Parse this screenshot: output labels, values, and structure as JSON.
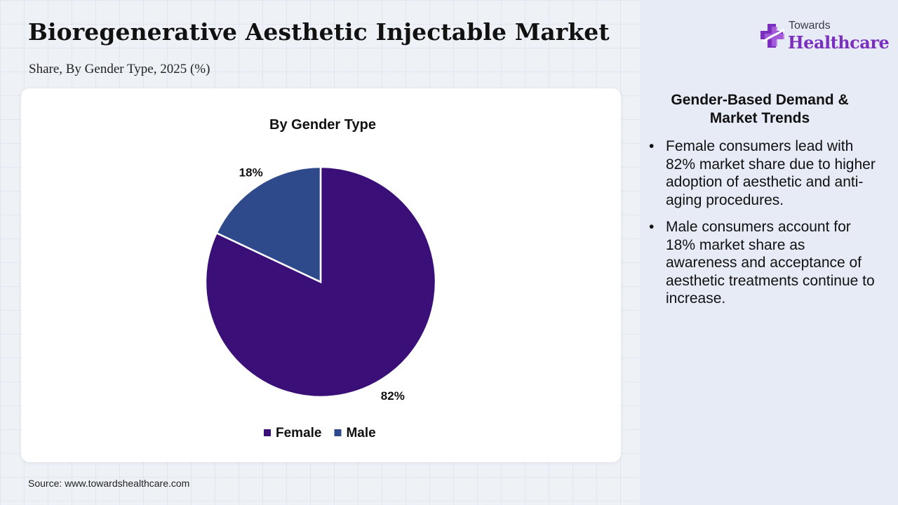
{
  "header": {
    "title": "Bioregenerative Aesthetic Injectable Market",
    "subtitle": "Share, By Gender Type, 2025 (%)"
  },
  "logo": {
    "small_text": "Towards",
    "big_text": "Healthcare",
    "icon": "medical-cross-icon",
    "colors": {
      "primary": "#7b2fbf",
      "secondary": "#b06ae0"
    }
  },
  "chart_data": {
    "type": "pie",
    "title": "By Gender Type",
    "categories": [
      "Female",
      "Male"
    ],
    "values": [
      82,
      18
    ],
    "labels": [
      "82%",
      "18%"
    ],
    "colors": [
      "#3b0f78",
      "#2e4a8a"
    ],
    "legend_position": "bottom",
    "start_angle": "12 o'clock",
    "direction": "clockwise"
  },
  "panel": {
    "heading": "Gender-Based Demand & Market Trends",
    "bullet_symbol": "•",
    "bullets": [
      "Female consumers lead with 82% market share due to higher adoption of aesthetic and anti-aging procedures.",
      "Male consumers account for 18% market share as awareness and acceptance of aesthetic treatments continue to increase."
    ]
  },
  "footer": {
    "source": "Source: www.towardshealthcare.com"
  }
}
